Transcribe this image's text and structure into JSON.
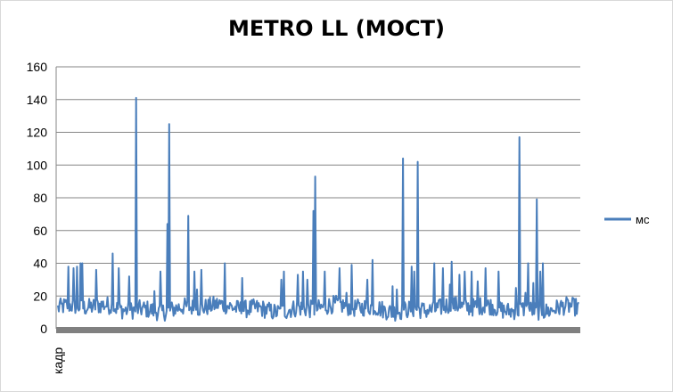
{
  "chart_data": {
    "type": "line",
    "title": "METRO LL (MOCT)",
    "xlabel": "кадр",
    "ylabel": "",
    "ylim": [
      0,
      160
    ],
    "yticks": [
      0,
      20,
      40,
      60,
      80,
      100,
      120,
      140,
      160
    ],
    "grid": true,
    "legend_position": "right",
    "colors": {
      "series": "#4a7ebb",
      "grid": "#868686",
      "axis": "#868686",
      "xaxis_band": "#808080"
    },
    "series": [
      {
        "name": "мс",
        "x_count": 600,
        "baseline_low": 7,
        "baseline_high": 18,
        "spikes": [
          {
            "x": 2,
            "y": 16
          },
          {
            "x": 12,
            "y": 38
          },
          {
            "x": 18,
            "y": 37
          },
          {
            "x": 22,
            "y": 38
          },
          {
            "x": 26,
            "y": 40
          },
          {
            "x": 28,
            "y": 40
          },
          {
            "x": 44,
            "y": 36
          },
          {
            "x": 63,
            "y": 46
          },
          {
            "x": 70,
            "y": 37
          },
          {
            "x": 82,
            "y": 32
          },
          {
            "x": 90,
            "y": 141
          },
          {
            "x": 111,
            "y": 23
          },
          {
            "x": 118,
            "y": 35
          },
          {
            "x": 126,
            "y": 64
          },
          {
            "x": 128,
            "y": 125
          },
          {
            "x": 150,
            "y": 69
          },
          {
            "x": 157,
            "y": 35
          },
          {
            "x": 160,
            "y": 24
          },
          {
            "x": 165,
            "y": 36
          },
          {
            "x": 192,
            "y": 40
          },
          {
            "x": 212,
            "y": 31
          },
          {
            "x": 257,
            "y": 30
          },
          {
            "x": 260,
            "y": 35
          },
          {
            "x": 276,
            "y": 33
          },
          {
            "x": 282,
            "y": 35
          },
          {
            "x": 287,
            "y": 30
          },
          {
            "x": 294,
            "y": 72
          },
          {
            "x": 296,
            "y": 93
          },
          {
            "x": 307,
            "y": 35
          },
          {
            "x": 324,
            "y": 37
          },
          {
            "x": 332,
            "y": 22
          },
          {
            "x": 338,
            "y": 39
          },
          {
            "x": 356,
            "y": 30
          },
          {
            "x": 362,
            "y": 42
          },
          {
            "x": 385,
            "y": 26
          },
          {
            "x": 390,
            "y": 24
          },
          {
            "x": 397,
            "y": 104
          },
          {
            "x": 407,
            "y": 38
          },
          {
            "x": 410,
            "y": 35
          },
          {
            "x": 414,
            "y": 102
          },
          {
            "x": 433,
            "y": 40
          },
          {
            "x": 443,
            "y": 37
          },
          {
            "x": 451,
            "y": 27
          },
          {
            "x": 453,
            "y": 41
          },
          {
            "x": 462,
            "y": 33
          },
          {
            "x": 468,
            "y": 35
          },
          {
            "x": 476,
            "y": 35
          },
          {
            "x": 483,
            "y": 29
          },
          {
            "x": 492,
            "y": 37
          },
          {
            "x": 507,
            "y": 35
          },
          {
            "x": 527,
            "y": 25
          },
          {
            "x": 531,
            "y": 117
          },
          {
            "x": 538,
            "y": 22
          },
          {
            "x": 541,
            "y": 40
          },
          {
            "x": 547,
            "y": 28
          },
          {
            "x": 551,
            "y": 79
          },
          {
            "x": 555,
            "y": 35
          },
          {
            "x": 558,
            "y": 40
          }
        ]
      }
    ]
  }
}
